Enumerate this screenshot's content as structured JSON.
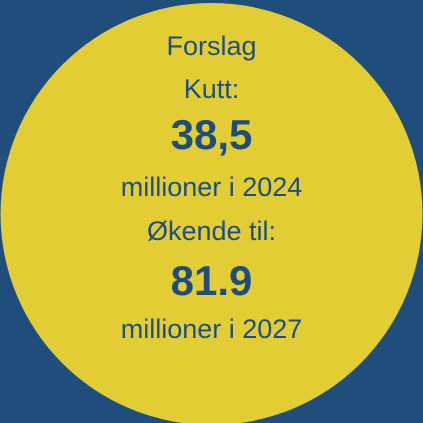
{
  "lines": {
    "heading1": "Forslag",
    "heading2": "Kutt:",
    "value1": "38,5",
    "caption1": "millioner i 2024",
    "heading3": "Økende til:",
    "value2": "81.9",
    "caption2": "millioner i 2027"
  }
}
